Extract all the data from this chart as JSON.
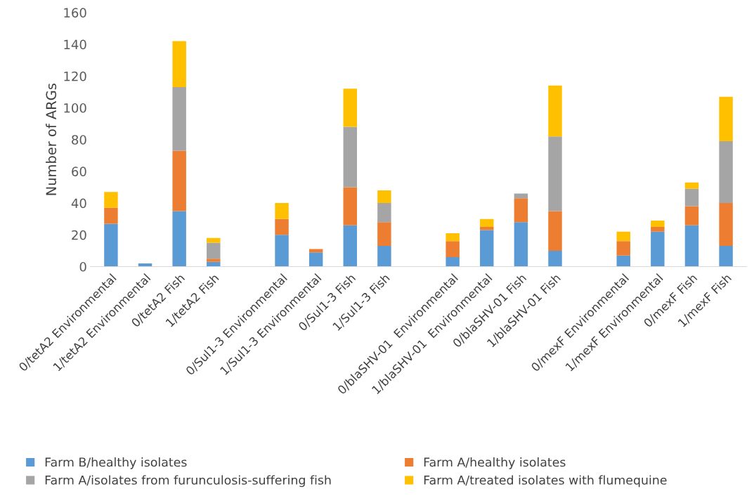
{
  "chart_data": {
    "type": "bar",
    "stacked": true,
    "ylabel": "Number of ARGs",
    "categories": [
      "0/tetA2 Environmental",
      "1/tetA2 Environmental",
      "0/tetA2 Fish",
      "1/tetA2 Fish",
      null,
      "0/Sul1-3 Environmental",
      "1/Sul1-3 Environmental",
      "0/Sul1-3 Fish",
      "1/Sul1-3 Fish",
      null,
      "0/blaSHV-01  Environmental",
      "1/blaSHV-01  Environmental",
      "0/blaSHV-01 Fish",
      "1/blaSHV-01 Fish",
      null,
      "0/mexF Environmental",
      "1/mexF Environmental",
      "0/mexF Fish",
      "1/mexF Fish"
    ],
    "series": [
      {
        "name": "Farm B/healthy isolates",
        "color": "#5b9bd5",
        "values": [
          27,
          2,
          35,
          3,
          null,
          20,
          9,
          26,
          13,
          null,
          6,
          23,
          28,
          10,
          null,
          7,
          22,
          26,
          13
        ]
      },
      {
        "name": "Farm A/healthy isolates",
        "color": "#ed7d31",
        "values": [
          10,
          0,
          38,
          2,
          null,
          10,
          2,
          24,
          15,
          null,
          10,
          2,
          15,
          25,
          null,
          9,
          3,
          12,
          27
        ]
      },
      {
        "name": "Farm A/isolates from furunculosis-suffering fish",
        "color": "#a5a5a5",
        "values": [
          0,
          0,
          40,
          10,
          null,
          0,
          0,
          38,
          12,
          null,
          0,
          0,
          3,
          47,
          null,
          0,
          0,
          11,
          39
        ]
      },
      {
        "name": "Farm A/treated isolates with flumequine",
        "color": "#ffc000",
        "values": [
          10,
          0,
          29,
          3,
          null,
          10,
          0,
          24,
          8,
          null,
          5,
          5,
          0,
          32,
          null,
          6,
          4,
          4,
          28
        ]
      }
    ],
    "ylim": [
      0,
      160
    ],
    "yticks": [
      0,
      20,
      40,
      60,
      80,
      100,
      120,
      140,
      160
    ],
    "legend": "bottom",
    "grid": false
  }
}
